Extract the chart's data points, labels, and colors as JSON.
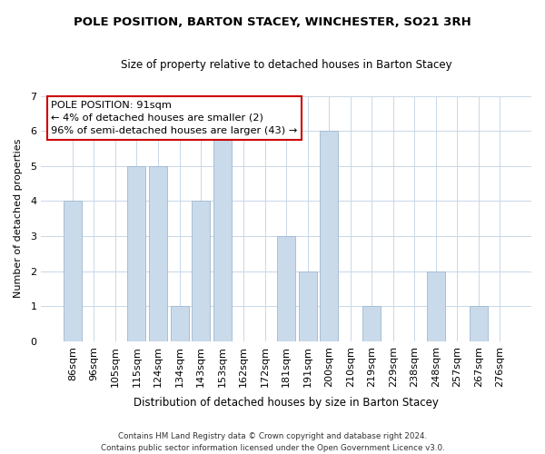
{
  "title": "POLE POSITION, BARTON STACEY, WINCHESTER, SO21 3RH",
  "subtitle": "Size of property relative to detached houses in Barton Stacey",
  "xlabel": "Distribution of detached houses by size in Barton Stacey",
  "ylabel": "Number of detached properties",
  "categories": [
    "86sqm",
    "96sqm",
    "105sqm",
    "115sqm",
    "124sqm",
    "134sqm",
    "143sqm",
    "153sqm",
    "162sqm",
    "172sqm",
    "181sqm",
    "191sqm",
    "200sqm",
    "210sqm",
    "219sqm",
    "229sqm",
    "238sqm",
    "248sqm",
    "257sqm",
    "267sqm",
    "276sqm"
  ],
  "values": [
    4,
    0,
    0,
    5,
    5,
    1,
    4,
    6,
    0,
    0,
    3,
    2,
    6,
    0,
    1,
    0,
    0,
    2,
    0,
    1,
    0
  ],
  "bar_color": "#c9daea",
  "bar_edge_color": "#a0b8d0",
  "ylim": [
    0,
    7
  ],
  "yticks": [
    0,
    1,
    2,
    3,
    4,
    5,
    6,
    7
  ],
  "annotation_title": "POLE POSITION: 91sqm",
  "annotation_line1": "← 4% of detached houses are smaller (2)",
  "annotation_line2": "96% of semi-detached houses are larger (43) →",
  "annotation_box_color": "#ffffff",
  "annotation_box_edge": "#cc0000",
  "footer_line1": "Contains HM Land Registry data © Crown copyright and database right 2024.",
  "footer_line2": "Contains public sector information licensed under the Open Government Licence v3.0.",
  "background_color": "#ffffff",
  "grid_color": "#c8d8e8"
}
